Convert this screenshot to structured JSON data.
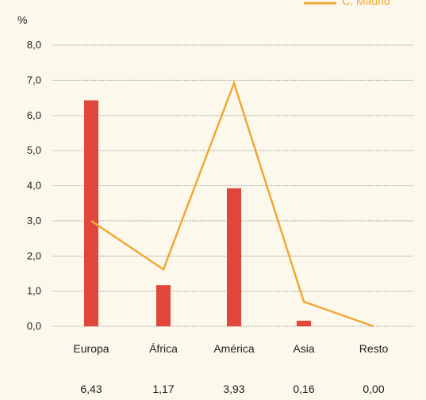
{
  "colors": {
    "background": "#fdf8ec",
    "bar": "#e0473a",
    "line": "#f0a834",
    "grid": "#9a9a9a",
    "text": "#222222"
  },
  "chart_data": {
    "type": "bar",
    "unit_label": "%",
    "categories": [
      "Europa",
      "África",
      "América",
      "Asia",
      "Resto"
    ],
    "value_labels": [
      "6,43",
      "1,17",
      "3,93",
      "0,16",
      "0,00"
    ],
    "series": [
      {
        "type": "bar",
        "values": [
          6.43,
          1.17,
          3.93,
          0.16,
          0.0
        ],
        "color": "#e0473a"
      },
      {
        "name": "C. Madrid",
        "type": "line",
        "values": [
          3.0,
          1.62,
          6.92,
          0.7,
          0.0
        ],
        "color": "#f0a834"
      }
    ],
    "ylim": [
      0,
      8
    ],
    "yticks": [
      "0,0",
      "1,0",
      "2,0",
      "3,0",
      "4,0",
      "5,0",
      "6,0",
      "7,0",
      "8,0"
    ],
    "grid": true,
    "legend_position": "top-right"
  }
}
